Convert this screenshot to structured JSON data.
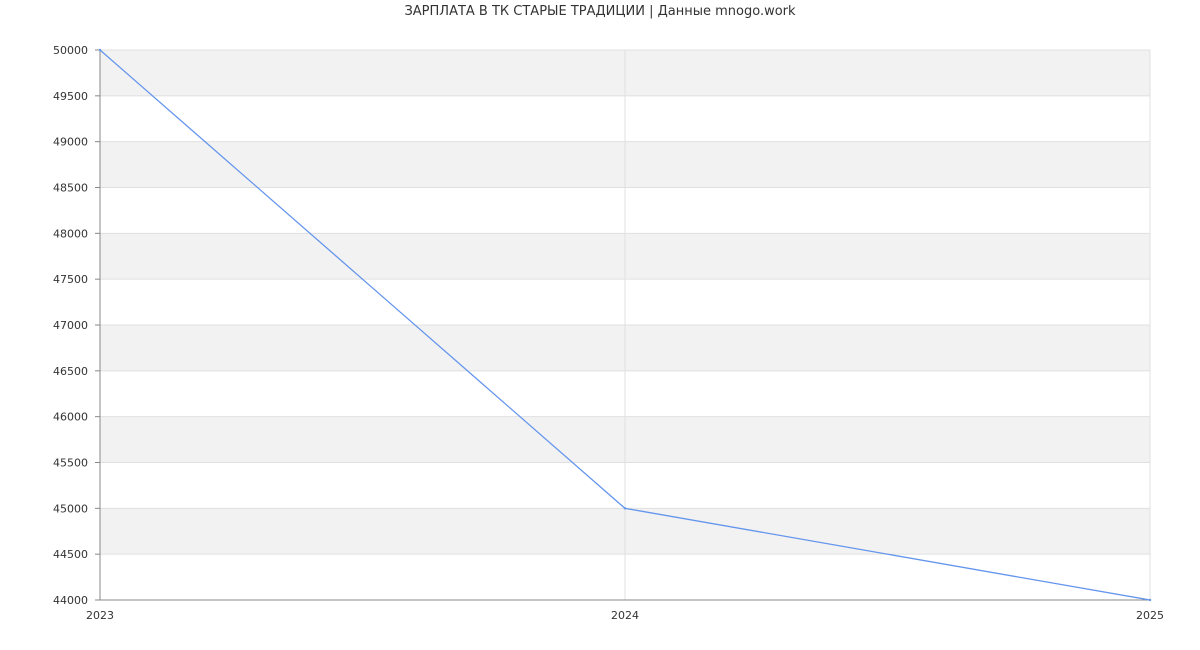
{
  "chart_data": {
    "type": "line",
    "title": "ЗАРПЛАТА В ТК СТАРЫЕ ТРАДИЦИИ | Данные mnogo.work",
    "x": [
      "2023",
      "2024",
      "2025"
    ],
    "series": [
      {
        "values": [
          50000,
          45000,
          44000
        ],
        "color": "#6495ed"
      }
    ],
    "ylim": [
      44000,
      50000
    ],
    "yticks": [
      44000,
      44500,
      45000,
      45500,
      46000,
      46500,
      47000,
      47500,
      48000,
      48500,
      49000,
      49500,
      50000
    ],
    "grid": true,
    "band_color": "#f2f2f2",
    "grid_color": "#e0e0e0",
    "axis_color": "#888888"
  }
}
